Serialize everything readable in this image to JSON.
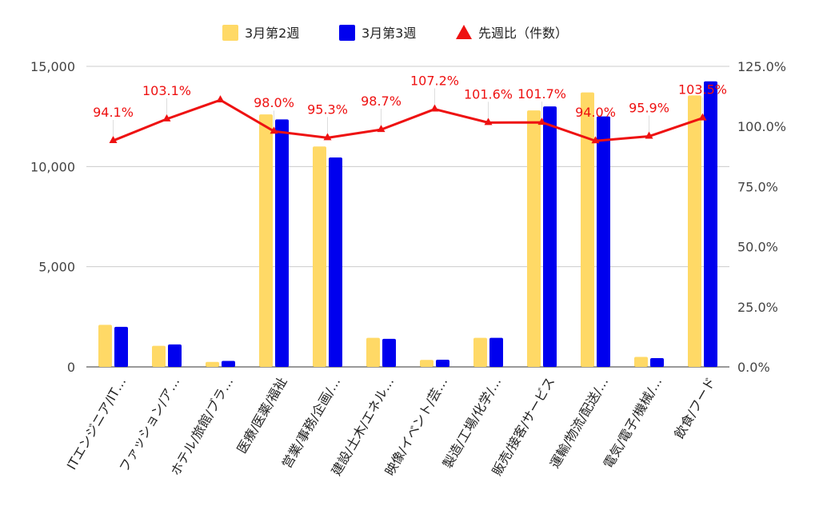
{
  "chart_data": {
    "type": "bar",
    "categories": [
      "ITエンジニア/IT…",
      "ファッション/ア…",
      "ホテル/旅館/ブラ…",
      "医療/医薬/福祉",
      "営業/事務/企画/…",
      "建設/土木/エネル…",
      "映像/イベント/芸…",
      "製造/工場/化学/…",
      "販売/接客/サービス",
      "運輸/物流/配送/…",
      "電気/電子/機械/…",
      "飲食/フード"
    ],
    "series": [
      {
        "name": "3月第2週",
        "color": "#ffd966",
        "axis": "left",
        "values": [
          2100,
          1050,
          250,
          12600,
          11000,
          1450,
          350,
          1450,
          12800,
          13700,
          500,
          13550
        ]
      },
      {
        "name": "3月第3週",
        "color": "#0000ee",
        "axis": "left",
        "values": [
          2000,
          1120,
          300,
          12350,
          10450,
          1400,
          360,
          1450,
          13000,
          12500,
          440,
          14250
        ]
      },
      {
        "name": "先週比（件数）",
        "type": "line",
        "color": "#ee1111",
        "axis": "right",
        "values": [
          94.1,
          103.1,
          111.0,
          98.0,
          95.3,
          98.7,
          107.2,
          101.6,
          101.7,
          94.0,
          95.9,
          103.5
        ],
        "labels": [
          "94.1%",
          "103.1%",
          "",
          "98.0%",
          "95.3%",
          "98.7%",
          "107.2%",
          "101.6%",
          "101.7%",
          "94.0%",
          "95.9%",
          "103.5%"
        ]
      }
    ],
    "yleft": {
      "range": [
        0,
        15000
      ],
      "ticks": [
        0,
        5000,
        10000,
        15000
      ],
      "tick_labels": [
        "0",
        "5,000",
        "10,000",
        "15,000"
      ]
    },
    "yright": {
      "range": [
        0,
        125
      ],
      "ticks": [
        0,
        25,
        50,
        75,
        100,
        125
      ],
      "tick_labels": [
        "0.0%",
        "25.0%",
        "50.0%",
        "75.0%",
        "100.0%",
        "125.0%"
      ]
    },
    "legend_position": "top-center",
    "grid": true
  }
}
